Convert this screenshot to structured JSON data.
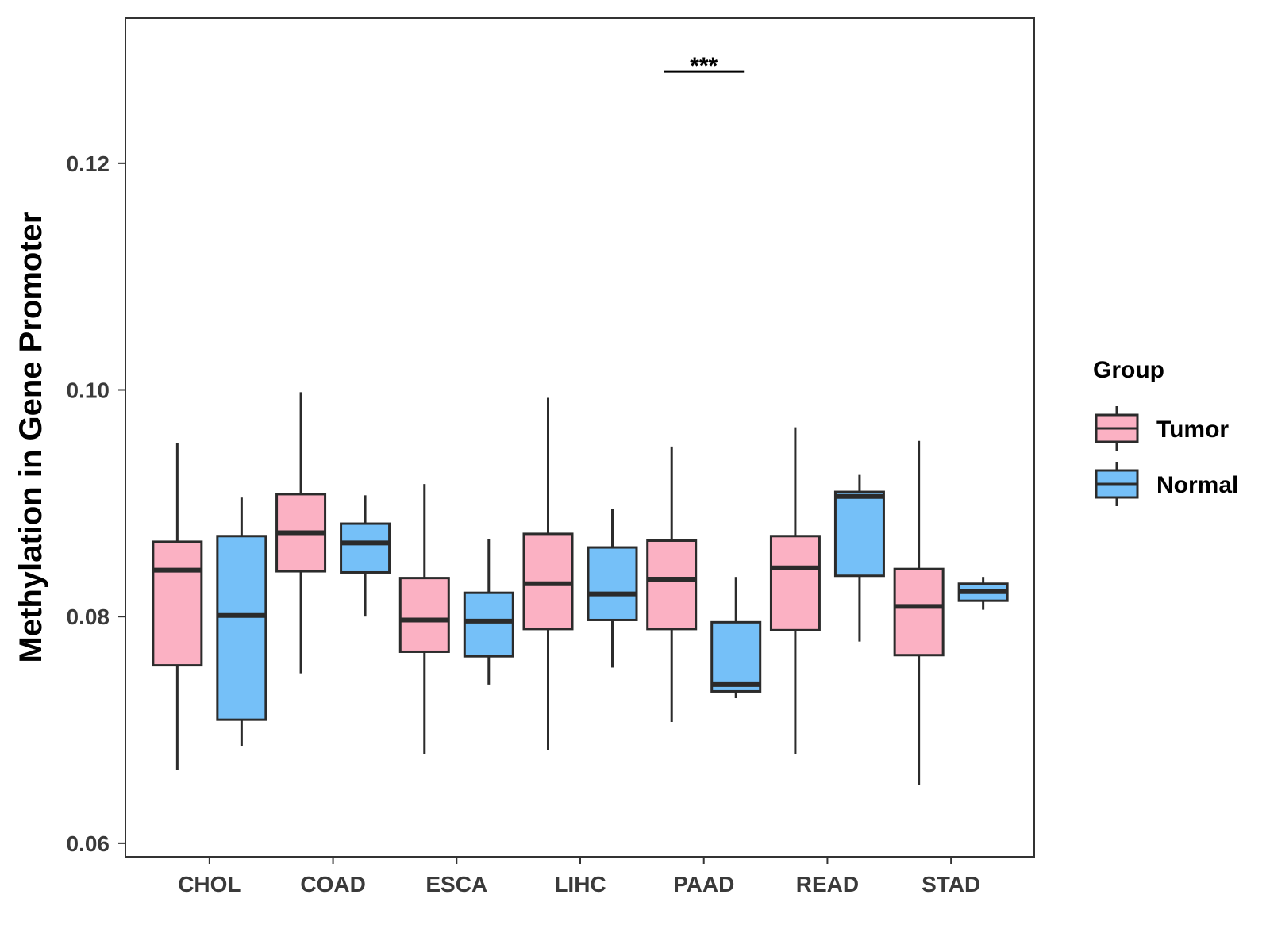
{
  "chart_data": {
    "type": "boxplot",
    "title": "",
    "xlabel": "",
    "ylabel": "Methylation in Gene Promoter",
    "ylim": [
      0.0588,
      0.1328
    ],
    "yticks": [
      0.06,
      0.08,
      0.1,
      0.12
    ],
    "ytick_labels": [
      "0.06",
      "0.08",
      "0.10",
      "0.12"
    ],
    "categories": [
      "CHOL",
      "COAD",
      "ESCA",
      "LIHC",
      "PAAD",
      "READ",
      "STAD"
    ],
    "legend": {
      "title": "Group",
      "position": "right",
      "items": [
        {
          "label": "Tumor",
          "color": "#FBB1C3"
        },
        {
          "label": "Normal",
          "color": "#75C0F8"
        }
      ]
    },
    "series": [
      {
        "name": "Tumor",
        "color": "#FBB1C3",
        "boxes": [
          {
            "category": "CHOL",
            "whisker_low": 0.0665,
            "q1": 0.0757,
            "median": 0.0841,
            "q3": 0.0866,
            "whisker_high": 0.0953
          },
          {
            "category": "COAD",
            "whisker_low": 0.075,
            "q1": 0.084,
            "median": 0.0874,
            "q3": 0.0908,
            "whisker_high": 0.0998
          },
          {
            "category": "ESCA",
            "whisker_low": 0.0679,
            "q1": 0.0769,
            "median": 0.0797,
            "q3": 0.0834,
            "whisker_high": 0.0917
          },
          {
            "category": "LIHC",
            "whisker_low": 0.0682,
            "q1": 0.0789,
            "median": 0.0829,
            "q3": 0.0873,
            "whisker_high": 0.0993
          },
          {
            "category": "PAAD",
            "whisker_low": 0.0707,
            "q1": 0.0789,
            "median": 0.0833,
            "q3": 0.0867,
            "whisker_high": 0.095
          },
          {
            "category": "READ",
            "whisker_low": 0.0679,
            "q1": 0.0788,
            "median": 0.0843,
            "q3": 0.0871,
            "whisker_high": 0.0967
          },
          {
            "category": "STAD",
            "whisker_low": 0.0651,
            "q1": 0.0766,
            "median": 0.0809,
            "q3": 0.0842,
            "whisker_high": 0.0955
          }
        ]
      },
      {
        "name": "Normal",
        "color": "#75C0F8",
        "boxes": [
          {
            "category": "CHOL",
            "whisker_low": 0.0686,
            "q1": 0.0709,
            "median": 0.0801,
            "q3": 0.0871,
            "whisker_high": 0.0905
          },
          {
            "category": "COAD",
            "whisker_low": 0.08,
            "q1": 0.0839,
            "median": 0.0865,
            "q3": 0.0882,
            "whisker_high": 0.0907
          },
          {
            "category": "ESCA",
            "whisker_low": 0.074,
            "q1": 0.0765,
            "median": 0.0796,
            "q3": 0.0821,
            "whisker_high": 0.0868
          },
          {
            "category": "LIHC",
            "whisker_low": 0.0755,
            "q1": 0.0797,
            "median": 0.082,
            "q3": 0.0861,
            "whisker_high": 0.0895
          },
          {
            "category": "PAAD",
            "whisker_low": 0.0728,
            "q1": 0.0734,
            "median": 0.074,
            "q3": 0.0795,
            "whisker_high": 0.0835
          },
          {
            "category": "READ",
            "whisker_low": 0.0778,
            "q1": 0.0836,
            "median": 0.0906,
            "q3": 0.091,
            "whisker_high": 0.0925
          },
          {
            "category": "STAD",
            "whisker_low": 0.0806,
            "q1": 0.0814,
            "median": 0.0822,
            "q3": 0.0829,
            "whisker_high": 0.0835
          }
        ]
      }
    ],
    "annotations": [
      {
        "text": "***",
        "category": "PAAD",
        "y": 0.1281
      }
    ]
  }
}
